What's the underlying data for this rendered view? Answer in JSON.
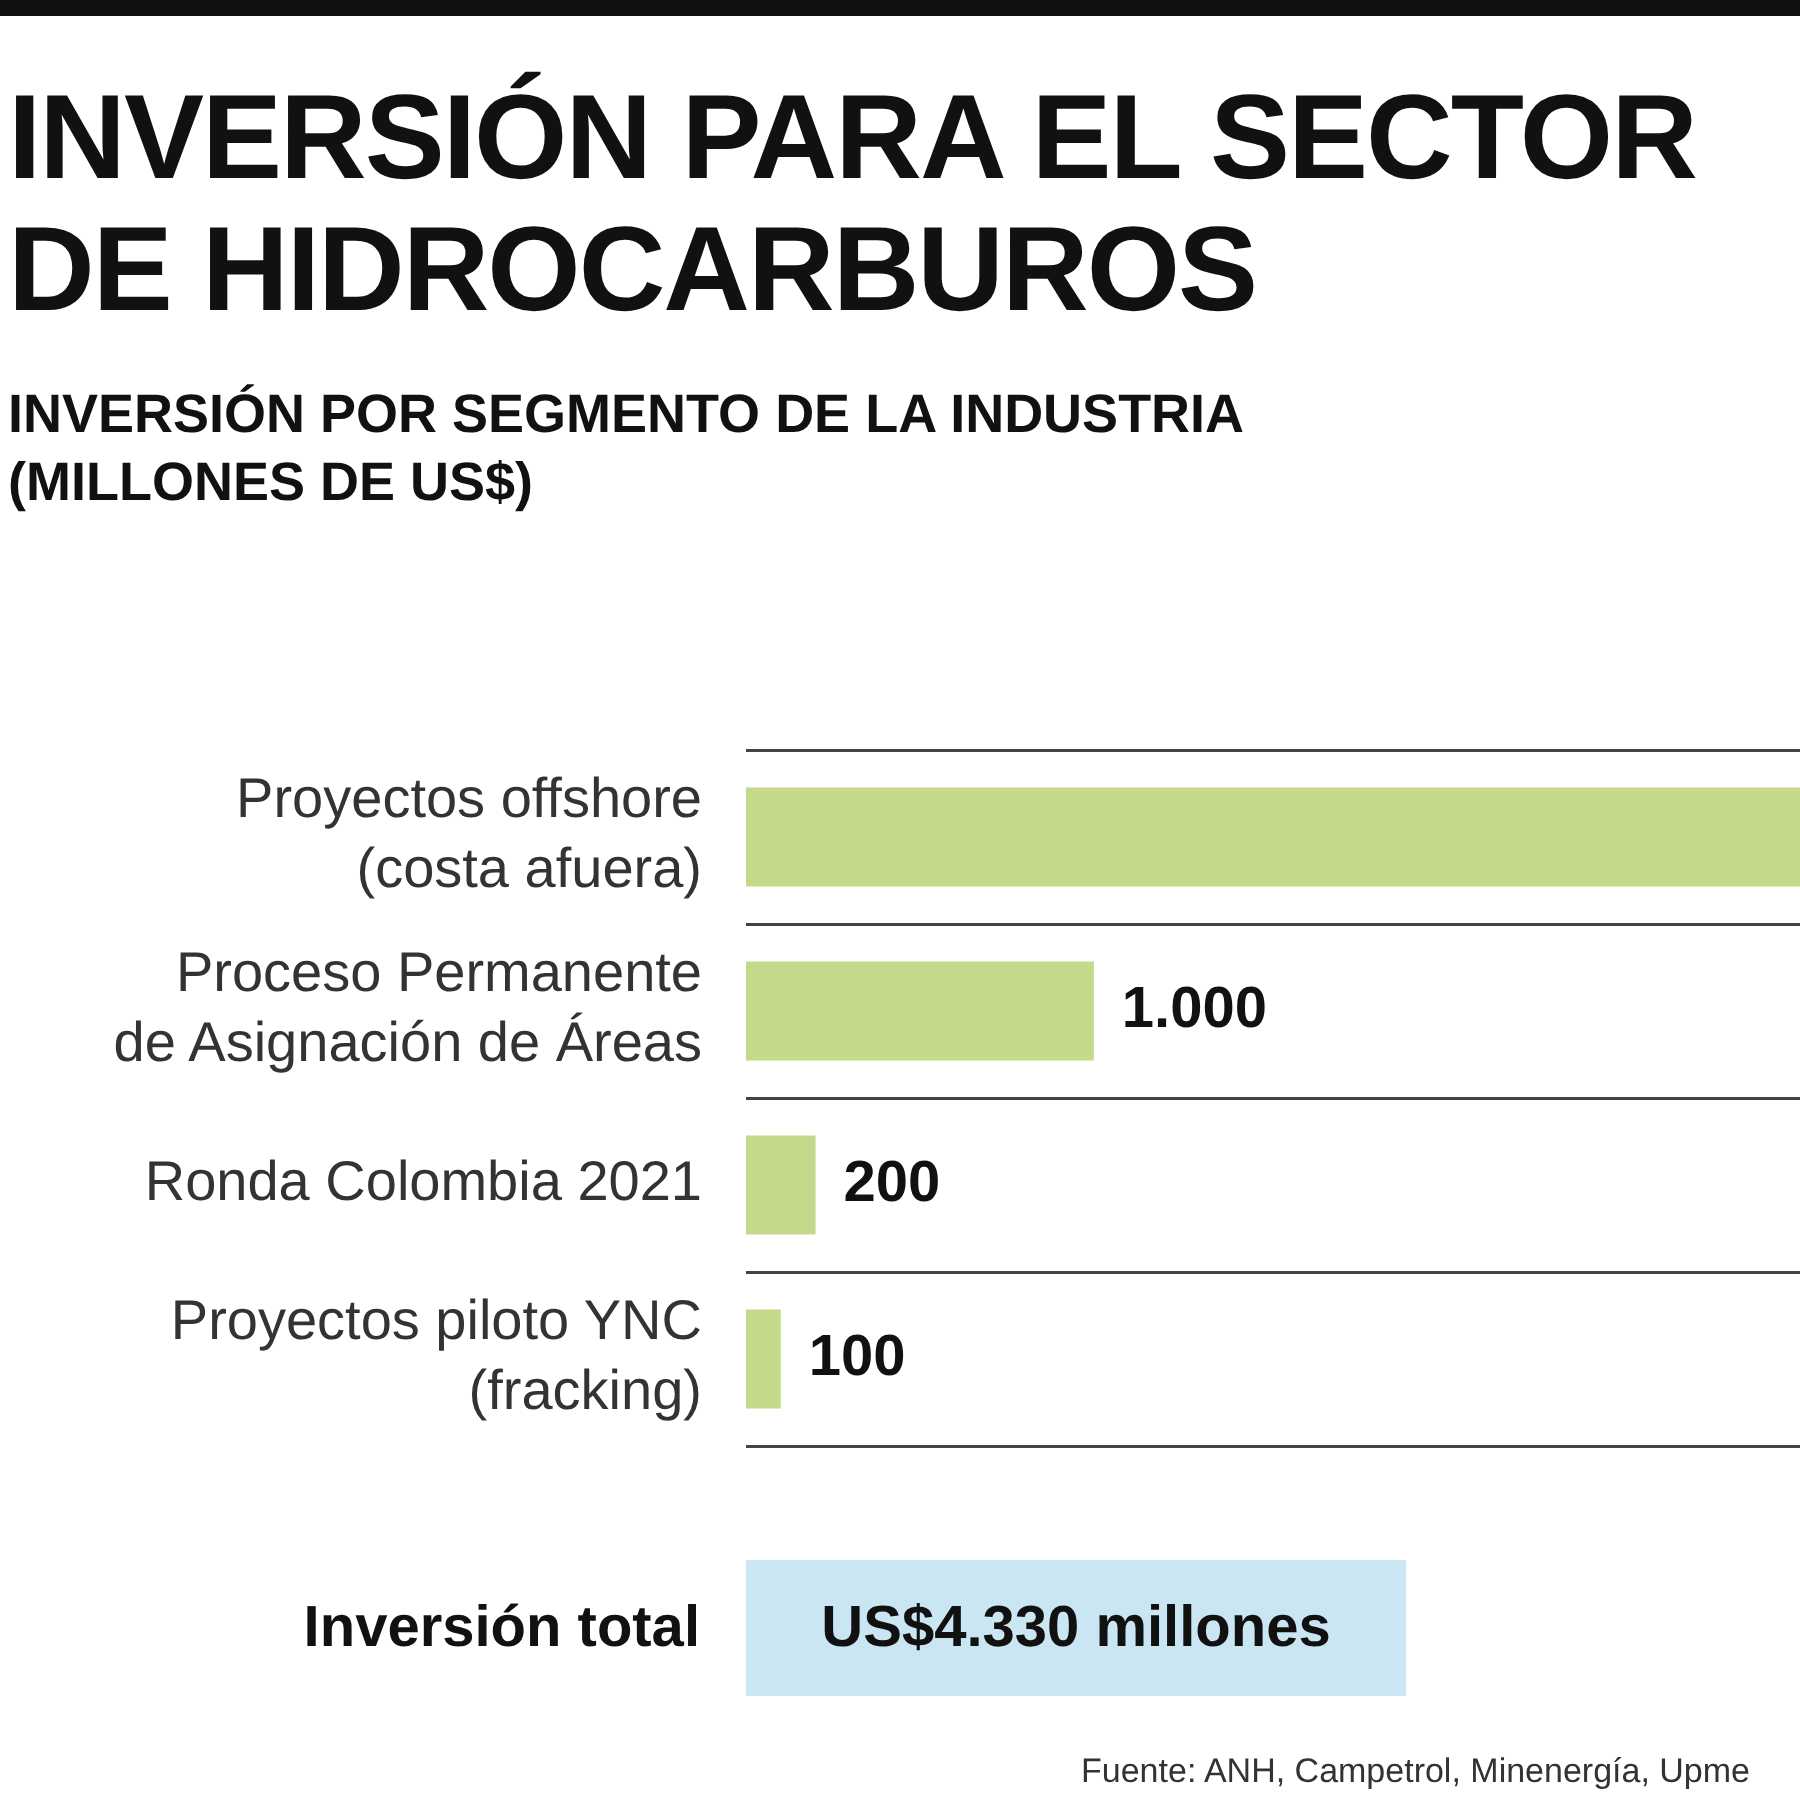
{
  "chart_data": {
    "type": "bar",
    "orientation": "horizontal",
    "title": "INVERSIÓN PARA EL SECTOR DE HIDROCARBUROS",
    "subtitle": "INVERSIÓN POR SEGMENTO DE LA INDUSTRIA (MILLONES DE US$)",
    "categories": [
      "Proyectos offshore\n(costa afuera)",
      "Proceso Permanente\nde Asignación de Áreas",
      "Ronda Colombia 2021",
      "Proyectos piloto YNC\n(fracking)"
    ],
    "values": [
      3030,
      1000,
      200,
      100
    ],
    "value_labels": [
      null,
      "1.000",
      "200",
      "100"
    ],
    "color": "#c5d98a",
    "grid": "y",
    "legend": false,
    "annotations": [
      "Inversión total",
      "US$4.330 millones",
      "Fuente: ANH, Campetrol, Minenergía, Upme"
    ]
  }
}
